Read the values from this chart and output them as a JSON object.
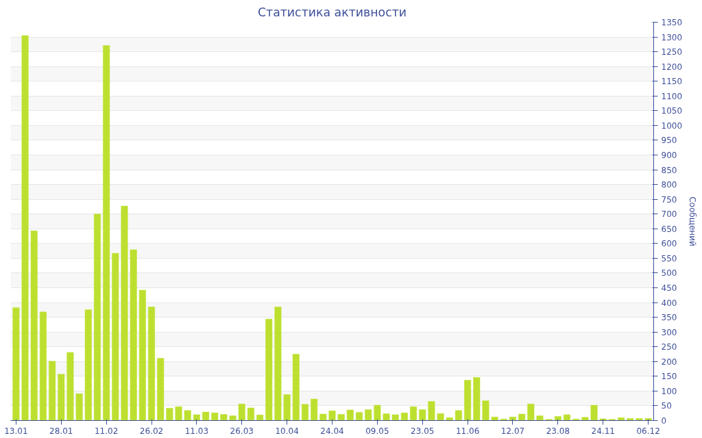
{
  "chart_data": {
    "type": "bar",
    "title": "Статистика активности",
    "y2label": "Сообщений",
    "categories": [
      "13.01",
      null,
      null,
      null,
      null,
      "28.01",
      null,
      null,
      null,
      null,
      "11.02",
      null,
      null,
      null,
      null,
      "26.02",
      null,
      null,
      null,
      null,
      "11.03",
      null,
      null,
      null,
      null,
      "26.03",
      null,
      null,
      null,
      null,
      "10.04",
      null,
      null,
      null,
      null,
      "24.04",
      null,
      null,
      null,
      null,
      "09.05",
      null,
      null,
      null,
      null,
      "23.05",
      null,
      null,
      null,
      null,
      "11.06",
      null,
      null,
      null,
      null,
      "12.07",
      null,
      null,
      null,
      null,
      "23.08",
      null,
      null,
      null,
      null,
      "24.11",
      null,
      null,
      null,
      null,
      "06.12"
    ],
    "series": [
      {
        "color": "#bde030",
        "axis": "y2",
        "values": [
          383,
          1305,
          643,
          368,
          201,
          157,
          231,
          91,
          376,
          700,
          1271,
          567,
          727,
          579,
          442,
          385,
          211,
          42,
          47,
          34,
          20,
          29,
          26,
          21,
          16,
          56,
          43,
          19,
          344,
          385,
          88,
          225,
          55,
          73,
          22,
          33,
          21,
          36,
          28,
          37,
          52,
          23,
          20,
          26,
          47,
          37,
          65,
          24,
          10,
          34,
          137,
          146,
          67,
          12,
          5,
          12,
          22,
          56,
          16,
          4,
          14,
          20,
          5,
          11,
          52,
          6,
          4,
          10,
          7,
          7,
          7
        ]
      }
    ],
    "y2lim": [
      0,
      1350
    ],
    "y2ticks": [
      0,
      50,
      100,
      150,
      200,
      250,
      300,
      350,
      400,
      450,
      500,
      550,
      600,
      650,
      700,
      750,
      800,
      850,
      900,
      950,
      1000,
      1050,
      1100,
      1150,
      1200,
      1250,
      1300,
      1350
    ],
    "grid": "y"
  }
}
